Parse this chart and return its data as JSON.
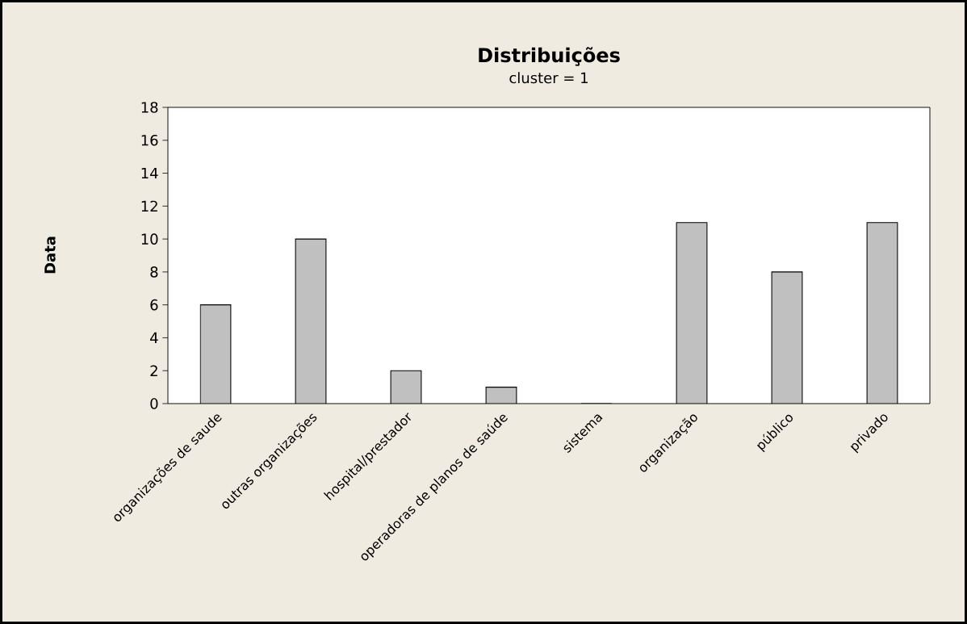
{
  "chart_data": {
    "type": "bar",
    "title": "Distribuições",
    "subtitle": "cluster = 1",
    "ylabel": "Data",
    "categories": [
      "organizações de saude",
      "outras organizações",
      "hospital/prestador",
      "operadoras de planos de saúde",
      "sistema",
      "organização",
      "público",
      "privado"
    ],
    "values": [
      6,
      10,
      2,
      1,
      0,
      11,
      8,
      11
    ],
    "color": "#c0c0c0",
    "ylim": [
      0,
      18
    ],
    "yticks": [
      0,
      2,
      4,
      6,
      8,
      10,
      12,
      14,
      16,
      18
    ],
    "grid": false
  }
}
